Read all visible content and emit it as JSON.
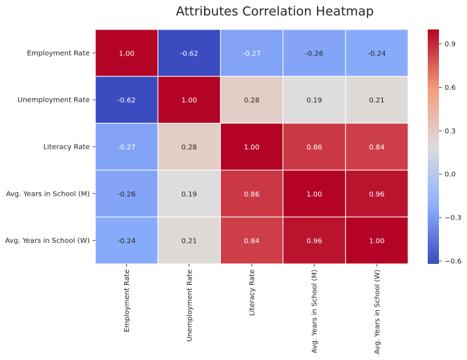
{
  "chart_data": {
    "type": "heatmap",
    "title": "Attributes Correlation Heatmap",
    "row_labels": [
      "Employment Rate",
      "Unemployment Rate",
      "Literacy Rate",
      "Avg. Years in School (M)",
      "Avg. Years in School (W)"
    ],
    "col_labels": [
      "Employment Rate",
      "Unemployment Rate",
      "Literacy Rate",
      "Avg. Years in School (M)",
      "Avg. Years in School (W)"
    ],
    "values": [
      [
        1.0,
        -0.62,
        -0.27,
        -0.26,
        -0.24
      ],
      [
        -0.62,
        1.0,
        0.28,
        0.19,
        0.21
      ],
      [
        -0.27,
        0.28,
        1.0,
        0.86,
        0.84
      ],
      [
        -0.26,
        0.19,
        0.86,
        1.0,
        0.96
      ],
      [
        -0.24,
        0.21,
        0.84,
        0.96,
        1.0
      ]
    ],
    "cell_labels": [
      [
        "1.00",
        "-0.62",
        "-0.27",
        "-0.26",
        "-0.24"
      ],
      [
        "-0.62",
        "1.00",
        "0.28",
        "0.19",
        "0.21"
      ],
      [
        "-0.27",
        "0.28",
        "1.00",
        "0.86",
        "0.84"
      ],
      [
        "-0.26",
        "0.19",
        "0.86",
        "1.00",
        "0.96"
      ],
      [
        "-0.24",
        "0.21",
        "0.84",
        "0.96",
        "1.00"
      ]
    ],
    "colormap": "coolwarm",
    "colormap_stops": [
      "#3b4cc0",
      "#8db0fe",
      "#dddddd",
      "#f49a7b",
      "#b40426"
    ],
    "vmin": -0.62,
    "vmax": 1.0,
    "colorbar_ticks": [
      0.9,
      0.6,
      0.3,
      0.0,
      -0.3,
      -0.6
    ],
    "colorbar_tick_labels": [
      "0.9",
      "0.6",
      "0.3",
      "0.0",
      "−0.3",
      "−0.6"
    ],
    "annot_color_dark": "#262626",
    "annot_color_light": "#ffffff",
    "grid_lines": true
  }
}
